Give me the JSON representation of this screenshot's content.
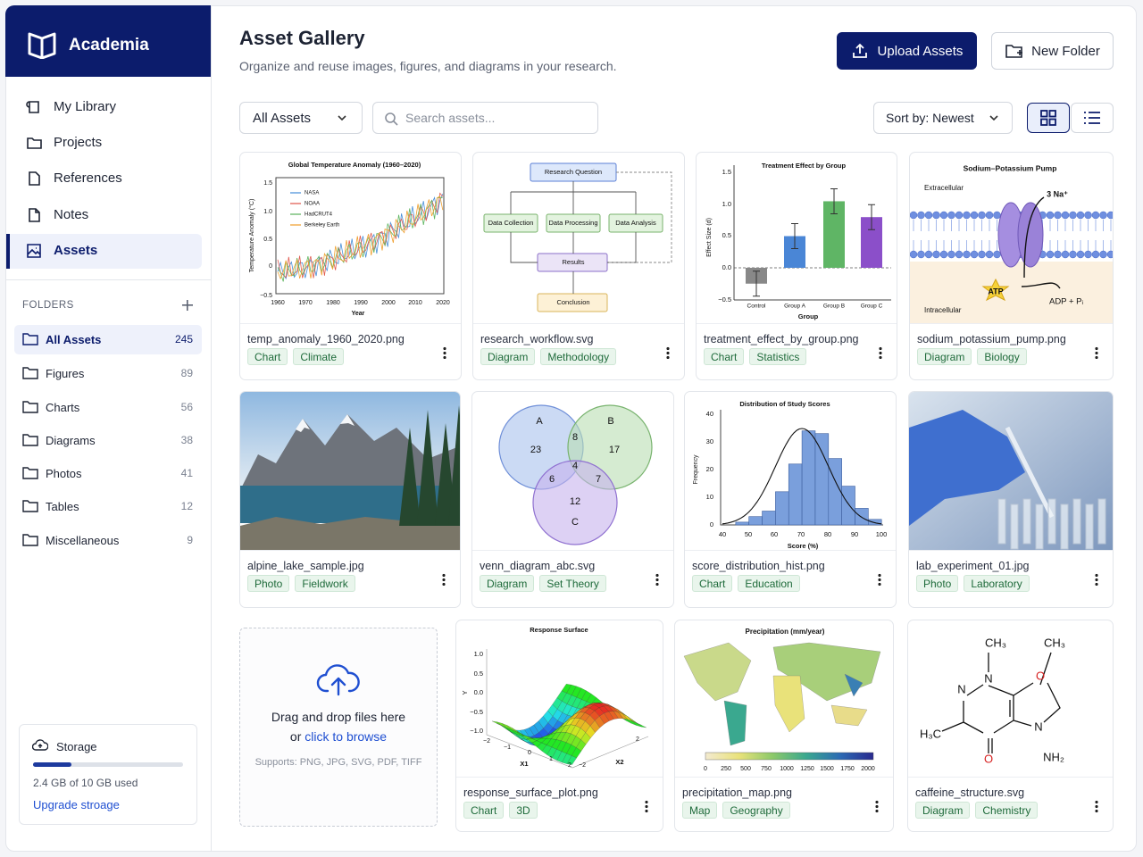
{
  "sidebar": {
    "brand": "Academia",
    "nav": [
      "My Library",
      "Projects",
      "References",
      "Notes",
      "Assets"
    ],
    "folders_title": "FOLDERS",
    "folders": [
      {
        "name": "All Assets",
        "count": 245
      },
      {
        "name": "Figures",
        "count": 89
      },
      {
        "name": "Charts",
        "count": 56
      },
      {
        "name": "Diagrams",
        "count": 38
      },
      {
        "name": "Photos",
        "count": 41
      },
      {
        "name": "Tables",
        "count": 12
      },
      {
        "name": "Miscellaneous",
        "count": 9
      }
    ],
    "storage": {
      "title": "Storage",
      "used": "2.4 GB of 10 GB used",
      "link": "Upgrade stroage"
    }
  },
  "header": {
    "title": "Asset Gallery",
    "subtitle": "Organize and reuse images, figures, and diagrams in your research.",
    "upload": "Upload Assets",
    "new_folder": "New Folder"
  },
  "toolbar": {
    "filter": "All Assets",
    "search": "Search assets...",
    "sort": "Sort by: Newest"
  },
  "assets": [
    {
      "file": "temp_anomaly_1960_2020.png",
      "tags": [
        "Chart",
        "Climate"
      ],
      "thumb_texts": [
        "Global Temperature Anomaly (1960–2020)",
        "1.5",
        "1.0",
        "0.5",
        "0",
        "−0.5",
        "1960",
        "1970",
        "1980",
        "1990",
        "2000",
        "2010",
        "2020",
        "Year",
        "Temperature Anomaly (°C)",
        "NASA",
        "NOAA",
        "HadCRUT4",
        "Berkeley Earth"
      ]
    },
    {
      "file": "research_workflow.svg",
      "tags": [
        "Diagram",
        "Methodology"
      ],
      "thumb_texts": [
        "Research Question",
        "Data Collection",
        "Data Processing",
        "Data Analysis",
        "Results",
        "Conclusion"
      ]
    },
    {
      "file": "treatment_effect_by_group.png",
      "tags": [
        "Chart",
        "Statistics"
      ],
      "thumb_texts": [
        "Treatment Effect by Group",
        "1.5",
        "1.0",
        "0.5",
        "0.0",
        "−0.5",
        "Effect Size (d)",
        "Control",
        "Group A",
        "Group B",
        "Group C",
        "Group"
      ]
    },
    {
      "file": "sodium_potassium_pump.png",
      "tags": [
        "Diagram",
        "Biology"
      ],
      "thumb_texts": [
        "Sodium–Potassium Pump",
        "Extracellular",
        "3 Na⁺",
        "ATP",
        "ADP + Pᵢ",
        "Intracellular"
      ]
    },
    {
      "file": "alpine_lake_sample.jpg",
      "tags": [
        "Photo",
        "Fieldwork"
      ]
    },
    {
      "file": "venn_diagram_abc.svg",
      "tags": [
        "Diagram",
        "Set Theory"
      ],
      "thumb_texts": [
        "A",
        "B",
        "23",
        "8",
        "17",
        "4",
        "6",
        "7",
        "12",
        "C"
      ]
    },
    {
      "file": "score_distribution_hist.png",
      "tags": [
        "Chart",
        "Education"
      ],
      "thumb_texts": [
        "Distribution of Study Scores",
        "40",
        "30",
        "20",
        "10",
        "0",
        "Frequency",
        "40",
        "50",
        "60",
        "70",
        "80",
        "90",
        "100",
        "Score (%)"
      ]
    },
    {
      "file": "lab_experiment_01.jpg",
      "tags": [
        "Photo",
        "Laboratory"
      ]
    },
    {
      "file": "response_surface_plot.png",
      "tags": [
        "Chart",
        "3D"
      ],
      "thumb_texts": [
        "Response Surface",
        "1.0",
        "0.5",
        "0.0",
        "−0.5",
        "−1.0",
        "Y",
        "−2",
        "−1",
        "0",
        "1",
        "2",
        "X1",
        "−2",
        "2",
        "X2"
      ]
    },
    {
      "file": "precipitation_map.png",
      "tags": [
        "Map",
        "Geography"
      ],
      "thumb_texts": [
        "Precipitation (mm/year)",
        "0",
        "250",
        "500",
        "750",
        "1000",
        "1250",
        "1500",
        "1750",
        "2000"
      ]
    },
    {
      "file": "caffeine_structure.svg",
      "tags": [
        "Diagram",
        "Chemistry"
      ],
      "thumb_texts": [
        "CH₃",
        "CH₃",
        "N",
        "O",
        "N",
        "N",
        "H₃C",
        "NH₂",
        "O"
      ]
    }
  ],
  "upload_zone": {
    "text": "Drag and drop files here",
    "or": "or",
    "link": "click to browse",
    "formats": "Supports: PNG, JPG, SVG, PDF, TIFF"
  }
}
